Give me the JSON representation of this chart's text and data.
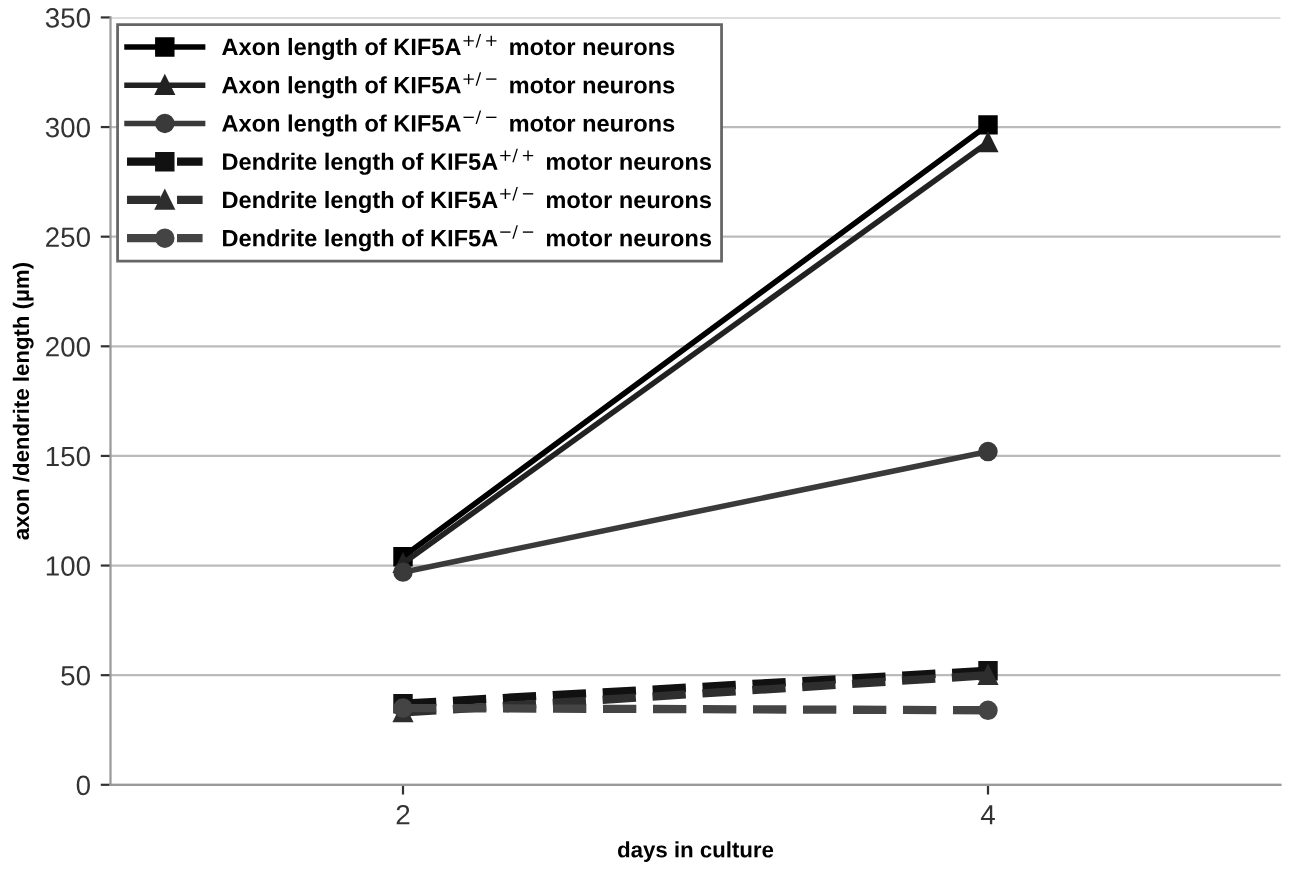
{
  "chart_data": {
    "type": "line",
    "xlabel": "days in culture",
    "ylabel": "axon /dendrite length (µm)",
    "x": [
      2,
      4
    ],
    "xlim": [
      1,
      5
    ],
    "xticks": [
      2,
      4
    ],
    "series": [
      {
        "name": "Axon length of KIF5A$^{+/+}$ motor neurons",
        "color": "#000000",
        "marker": "square",
        "line_style": "solid",
        "values": [
          104,
          301
        ]
      },
      {
        "name": "Axon length of KIF5A$^{+/−}$ motor neurons",
        "color": "#222222",
        "marker": "triangle",
        "line_style": "solid",
        "values": [
          101,
          293
        ]
      },
      {
        "name": "Axon length of KIF5A$^{−/−}$ motor neurons",
        "color": "#3a3a3a",
        "marker": "circle",
        "line_style": "solid",
        "values": [
          97,
          152
        ]
      },
      {
        "name": "Dendrite length of KIF5A$^{+/+}$ motor neurons",
        "color": "#111111",
        "marker": "square",
        "line_style": "dashed",
        "values": [
          37,
          52
        ]
      },
      {
        "name": "Dendrite length of KIF5A$^{+/−}$ motor neurons",
        "color": "#2e2e2e",
        "marker": "triangle",
        "line_style": "dashed",
        "values": [
          33,
          50
        ]
      },
      {
        "name": "Dendrite length of KIF5A$^{−/−}$ motor neurons",
        "color": "#444444",
        "marker": "circle",
        "line_style": "dashed",
        "values": [
          35,
          34
        ]
      }
    ],
    "ylim": [
      0,
      350
    ],
    "yticks": [
      0,
      50,
      100,
      150,
      200,
      250,
      300,
      350
    ],
    "grid": "y",
    "legend": "top left"
  }
}
